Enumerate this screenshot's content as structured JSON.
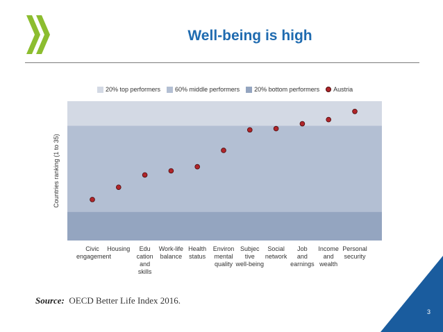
{
  "slide": {
    "title": "Well-being is high",
    "source_label": "Source:",
    "source_text": "OECD Better Life Index 2016.",
    "page_number": "3",
    "colors": {
      "title": "#1f6bb0",
      "logo": "#8cbd2f",
      "corner": "#1a5c9e"
    }
  },
  "chart_data": {
    "type": "scatter",
    "title": "",
    "ylabel": "Countries ranking (1 to 35)",
    "xlabel": "",
    "ylim": [
      35,
      1
    ],
    "bands": [
      {
        "name": "20% top performers",
        "from": 1,
        "to": 7,
        "color": "#d3d9e4"
      },
      {
        "name": "60% middle performers",
        "from": 7,
        "to": 28,
        "color": "#b3bfd3"
      },
      {
        "name": "20% bottom performers",
        "from": 28,
        "to": 35,
        "color": "#94a5c0"
      }
    ],
    "legend": [
      {
        "label": "20% top performers",
        "kind": "swatch",
        "color": "#d3d9e4"
      },
      {
        "label": "60% middle performers",
        "kind": "swatch",
        "color": "#b3bfd3"
      },
      {
        "label": "20% bottom performers",
        "kind": "swatch",
        "color": "#94a5c0"
      },
      {
        "label": "Austria",
        "kind": "dot",
        "color": "#b0252a"
      }
    ],
    "categories": [
      "Civic\nengagement",
      "Housing",
      "Edu\ncation\nand\nskills",
      "Work-life\nbalance",
      "Health\nstatus",
      "Environ\nmental\nquality",
      "Subjec\ntive\nwell-being",
      "Social\nnetwork",
      "Job\nand\nearnings",
      "Income\nand\nwealth",
      "Personal\nsecurity"
    ],
    "series": [
      {
        "name": "Austria",
        "values": [
          25,
          22,
          19,
          18,
          17,
          13,
          8,
          7.7,
          6.5,
          5.5,
          3.5
        ]
      }
    ]
  }
}
